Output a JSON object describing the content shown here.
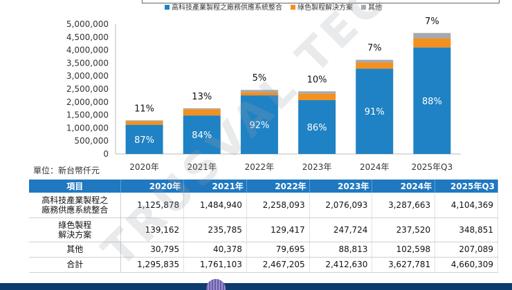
{
  "chart_data": {
    "type": "bar",
    "stacked": true,
    "categories": [
      "2020年",
      "2021年",
      "2022年",
      "2023年",
      "2024年",
      "2025年Q3"
    ],
    "series": [
      {
        "name": "高科技產業製程之廠務供應系統整合",
        "values": [
          1125878,
          1484940,
          2258093,
          2076093,
          3287663,
          4104369
        ],
        "color": "#1f82c4",
        "pct": [
          "87%",
          "84%",
          "92%",
          "86%",
          "91%",
          "88%"
        ]
      },
      {
        "name": "綠色製程解決方案",
        "values": [
          139162,
          235785,
          129417,
          247724,
          237520,
          348851
        ],
        "color": "#f4901e"
      },
      {
        "name": "其他",
        "values": [
          30795,
          40378,
          79695,
          88813,
          102598,
          207089
        ],
        "color": "#a6aaad"
      }
    ],
    "top_labels": [
      "11%",
      "13%",
      "5%",
      "10%",
      "7%",
      "7%"
    ],
    "ylim": [
      0,
      5000000
    ],
    "yticks": [
      "0",
      "500,000",
      "1,000,000",
      "1,500,000",
      "2,000,000",
      "2,500,000",
      "3,000,000",
      "3,500,000",
      "4,000,000",
      "4,500,000",
      "5,000,000"
    ],
    "legend_position": "top"
  },
  "unit_label": "單位：新台幣仟元",
  "watermark": "TRUSVAL TECHNOLOGY",
  "table": {
    "header": [
      "項目",
      "2020年",
      "2021年",
      "2022年",
      "2023年",
      "2024年",
      "2025年Q3"
    ],
    "rows": [
      {
        "label_lines": [
          "高科技產業製程之",
          "廠務供應系統整合"
        ],
        "values": [
          "1,125,878",
          "1,484,940",
          "2,258,093",
          "2,076,093",
          "3,287,663",
          "4,104,369"
        ]
      },
      {
        "label_lines": [
          "綠色製程",
          "解決方案"
        ],
        "values": [
          "139,162",
          "235,785",
          "129,417",
          "247,724",
          "237,520",
          "348,851"
        ]
      },
      {
        "label_lines": [
          "其他"
        ],
        "values": [
          "30,795",
          "40,378",
          "79,695",
          "88,813",
          "102,598",
          "207,089"
        ]
      },
      {
        "label_lines": [
          "合計"
        ],
        "values": [
          "1,295,835",
          "1,761,103",
          "2,467,205",
          "2,412,630",
          "3,627,781",
          "4,660,309"
        ]
      }
    ]
  }
}
